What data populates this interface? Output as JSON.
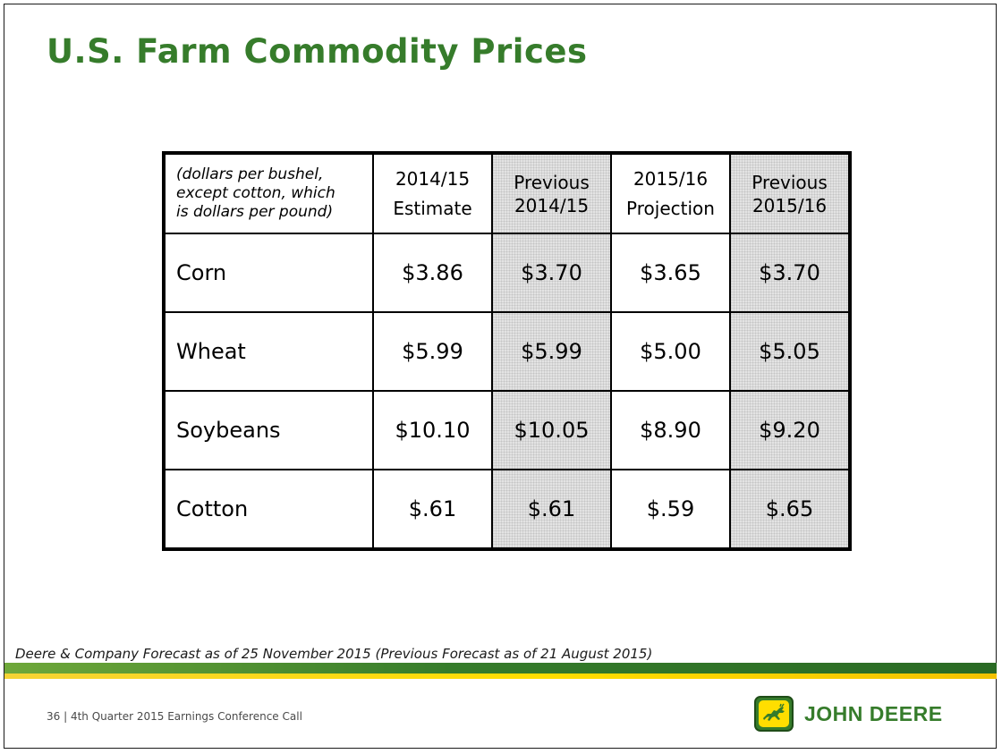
{
  "title": "U.S. Farm Commodity Prices",
  "table": {
    "note_lines": [
      "(dollars per bushel,",
      "except cotton, which",
      "is dollars per pound)"
    ],
    "columns": [
      {
        "line1": "2014/15",
        "line2": "Estimate",
        "shaded": false
      },
      {
        "line1": "Previous",
        "line2": "2014/15",
        "shaded": true
      },
      {
        "line1": "2015/16",
        "line2": "Projection",
        "shaded": false
      },
      {
        "line1": "Previous",
        "line2": "2015/16",
        "shaded": true
      }
    ],
    "rows": [
      {
        "label": "Corn",
        "values": [
          "$3.86",
          "$3.70",
          "$3.65",
          "$3.70"
        ]
      },
      {
        "label": "Wheat",
        "values": [
          "$5.99",
          "$5.99",
          "$5.00",
          "$5.05"
        ]
      },
      {
        "label": "Soybeans",
        "values": [
          "$10.10",
          "$10.05",
          "$8.90",
          "$9.20"
        ]
      },
      {
        "label": "Cotton",
        "values": [
          "$.61",
          "$.61",
          "$.59",
          "$.65"
        ]
      }
    ]
  },
  "footnote": "Deere & Company Forecast as of 25 November 2015 (Previous Forecast as of 21 August 2015)",
  "footer": {
    "text": "36 | 4th Quarter 2015 Earnings Conference Call",
    "logo_text": "JOHN DEERE",
    "logo_icon": "leaping-deer-icon"
  },
  "colors": {
    "brand_green": "#367c2b",
    "brand_yellow": "#ffde00",
    "shaded_cell": "#e3e3e3"
  }
}
